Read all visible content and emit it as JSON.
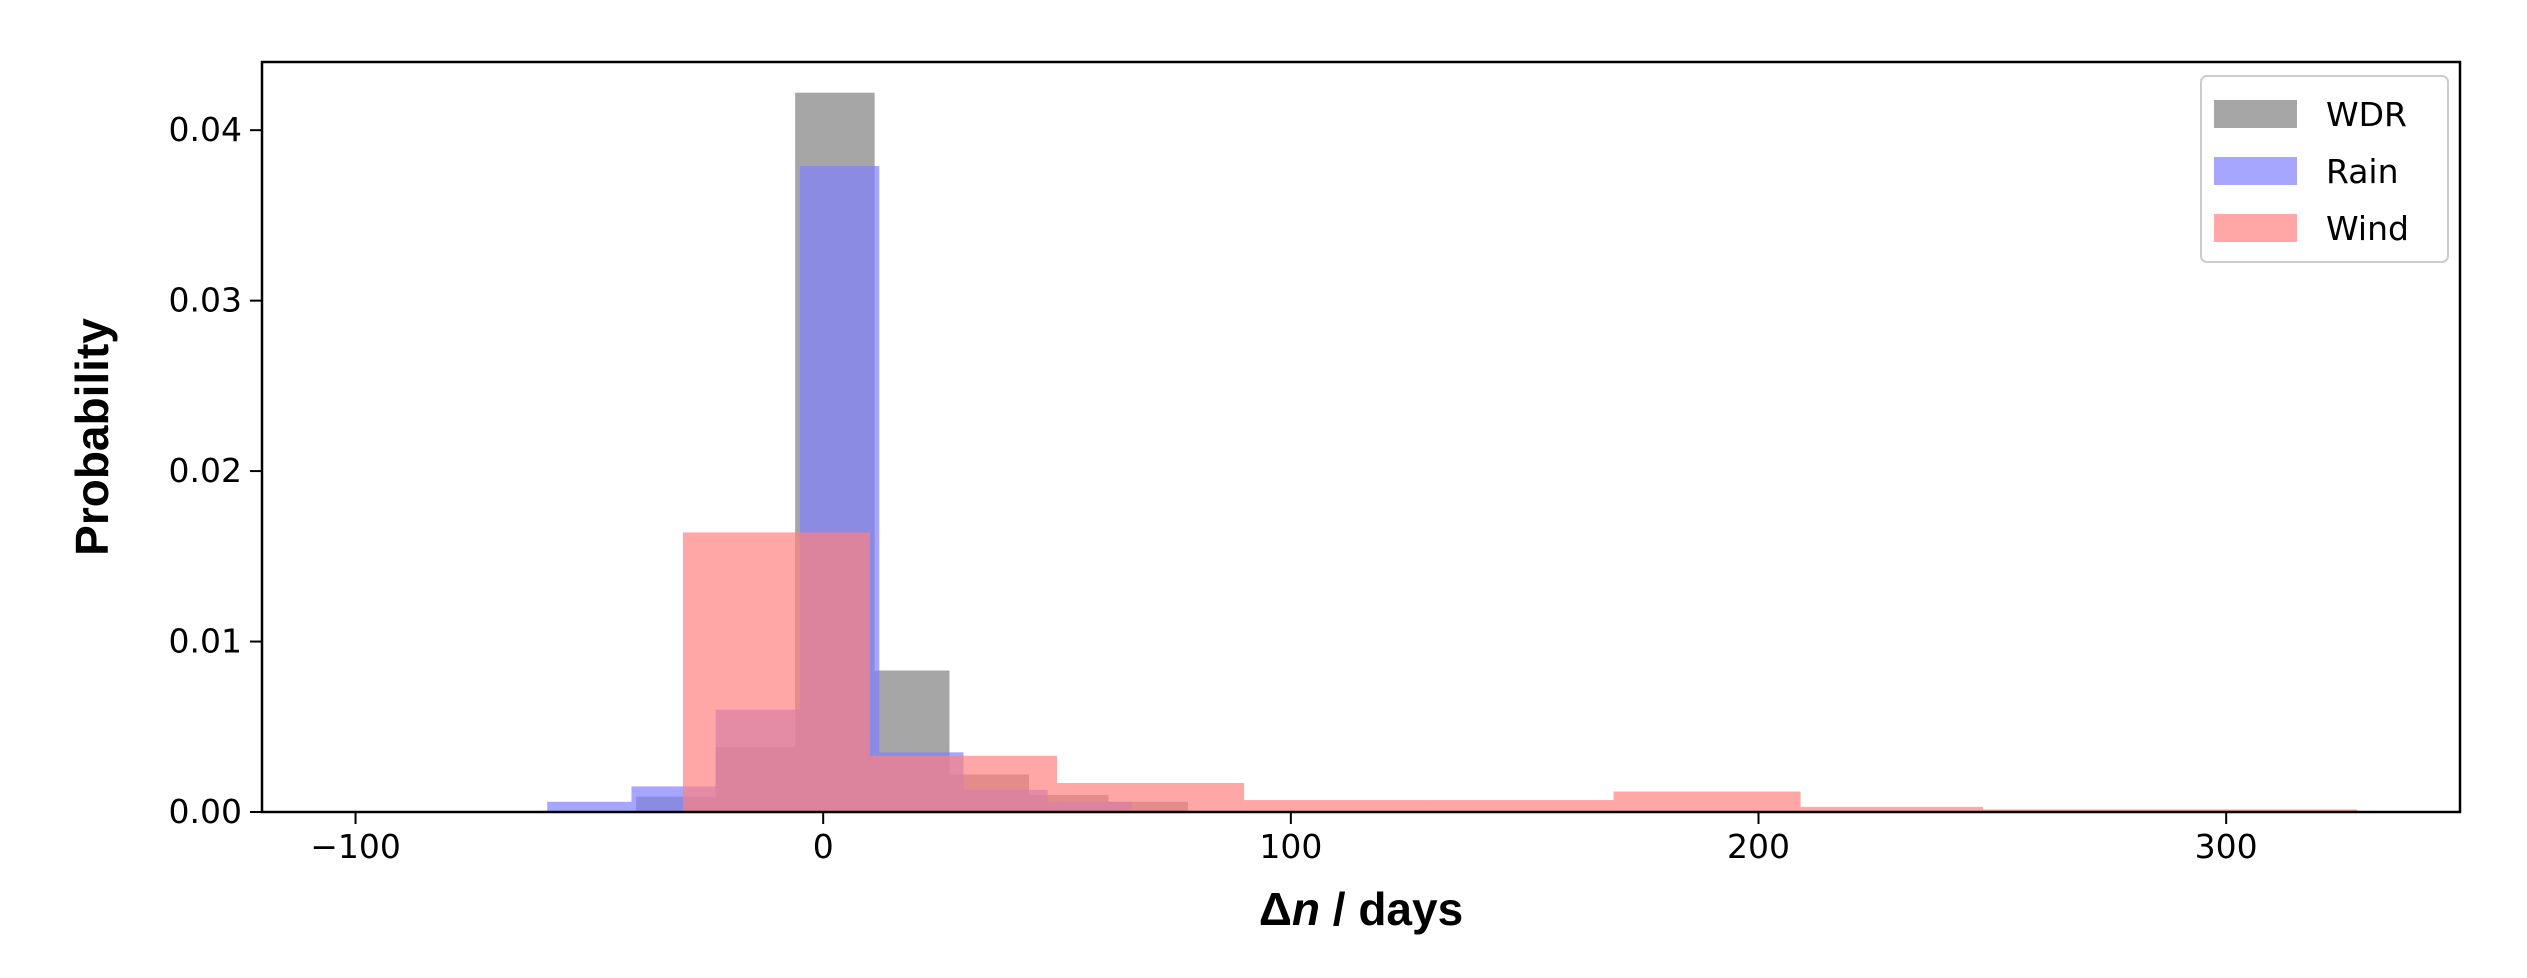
{
  "chart_data": {
    "type": "histogram",
    "xlabel": {
      "symbol": "Δ",
      "var": "n",
      "rest": " / days"
    },
    "ylabel": "Probability",
    "xlim": [
      -120,
      350
    ],
    "ylim": [
      0,
      0.044
    ],
    "xticks": [
      -100,
      0,
      100,
      200,
      300
    ],
    "xtick_labels": [
      "−100",
      "0",
      "100",
      "200",
      "300"
    ],
    "yticks": [
      0,
      0.01,
      0.02,
      0.03,
      0.04
    ],
    "ytick_labels": [
      "0.00",
      "0.01",
      "0.02",
      "0.03",
      "0.04"
    ],
    "legend": {
      "position": "top-right"
    },
    "series": [
      {
        "name": "WDR",
        "color": "#808080",
        "bins": [
          {
            "x0": -40,
            "x1": -23,
            "y": 0.0009
          },
          {
            "x0": -23,
            "x1": -6,
            "y": 0.0038
          },
          {
            "x0": -6,
            "x1": 11,
            "y": 0.0422
          },
          {
            "x0": 11,
            "x1": 27,
            "y": 0.0083
          },
          {
            "x0": 27,
            "x1": 44,
            "y": 0.0022
          },
          {
            "x0": 44,
            "x1": 61,
            "y": 0.001
          },
          {
            "x0": 61,
            "x1": 78,
            "y": 0.0006
          }
        ]
      },
      {
        "name": "Rain",
        "color": "#8080ff",
        "bins": [
          {
            "x0": -59,
            "x1": -41,
            "y": 0.0006
          },
          {
            "x0": -41,
            "x1": -23,
            "y": 0.0015
          },
          {
            "x0": -23,
            "x1": -5,
            "y": 0.006
          },
          {
            "x0": -5,
            "x1": 12,
            "y": 0.0379
          },
          {
            "x0": 12,
            "x1": 30,
            "y": 0.0035
          },
          {
            "x0": 30,
            "x1": 48,
            "y": 0.0013
          },
          {
            "x0": 48,
            "x1": 66,
            "y": 0.0006
          }
        ]
      },
      {
        "name": "Wind",
        "color": "#ff8080",
        "bins": [
          {
            "x0": -30,
            "x1": 10,
            "y": 0.0164
          },
          {
            "x0": 10,
            "x1": 50,
            "y": 0.0033
          },
          {
            "x0": 50,
            "x1": 90,
            "y": 0.0017
          },
          {
            "x0": 90,
            "x1": 129,
            "y": 0.0007
          },
          {
            "x0": 129,
            "x1": 169,
            "y": 0.0007
          },
          {
            "x0": 169,
            "x1": 209,
            "y": 0.0012
          },
          {
            "x0": 209,
            "x1": 248,
            "y": 0.0003
          },
          {
            "x0": 248,
            "x1": 288,
            "y": 0.00015
          },
          {
            "x0": 288,
            "x1": 328,
            "y": 0.00015
          }
        ]
      }
    ]
  }
}
